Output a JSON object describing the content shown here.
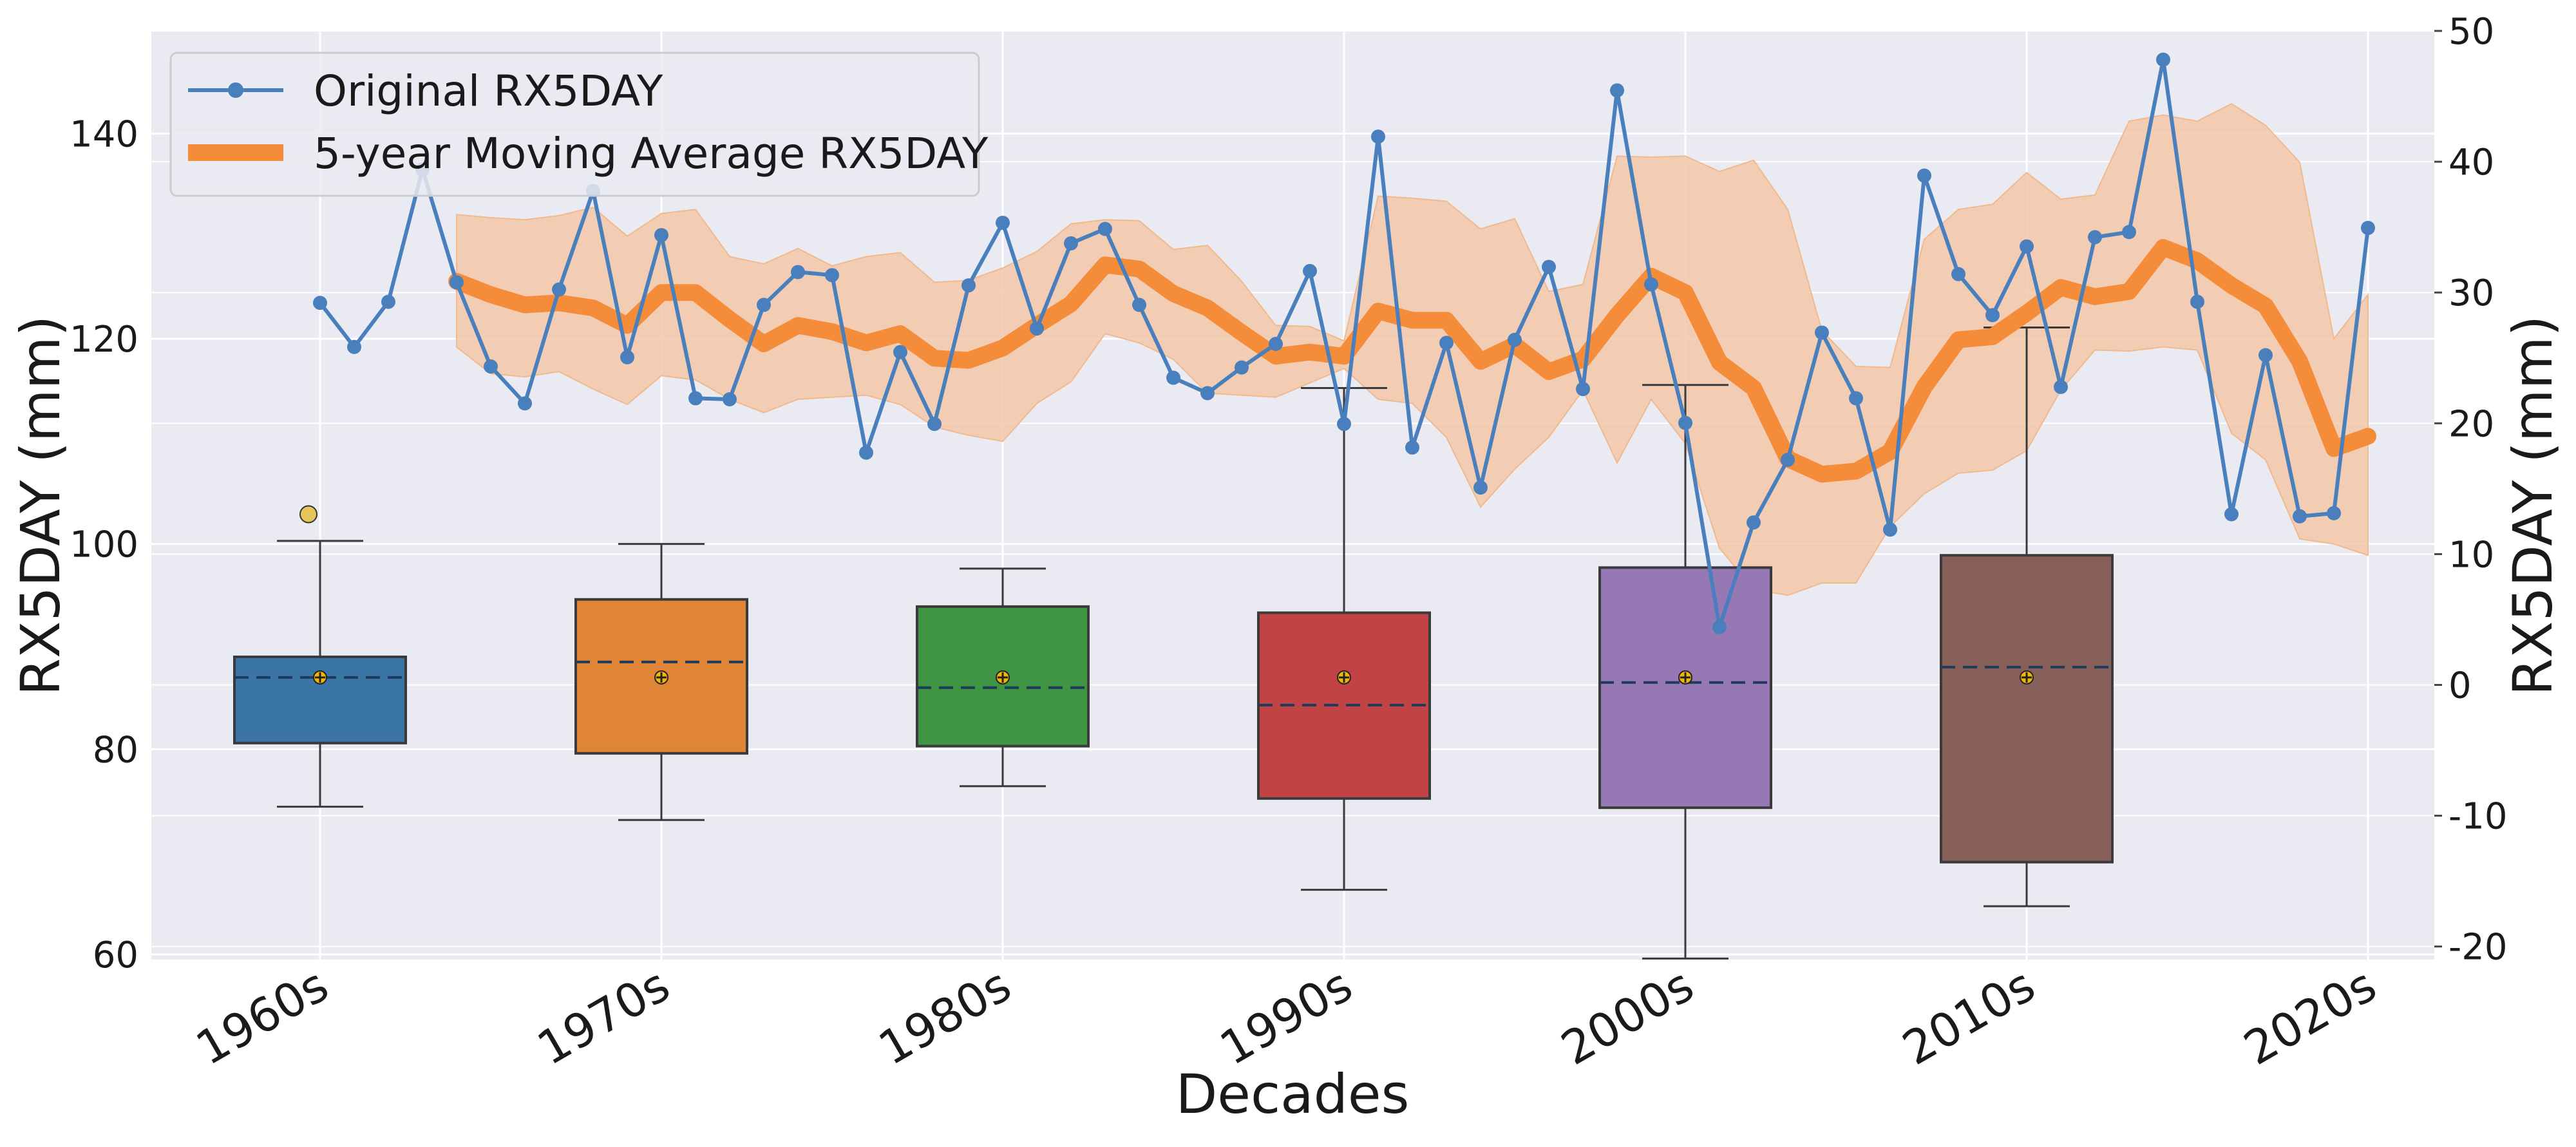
{
  "chart_data": {
    "type": "box_line_combo",
    "xlabel": "Decades",
    "ylabel_left": "RX5DAY (mm)",
    "ylabel_right": "RX5DAY (mm)",
    "ylim_left": [
      59.5,
      150
    ],
    "ylim_right": [
      -21,
      50
    ],
    "yticks_left": [
      60,
      80,
      100,
      120,
      140
    ],
    "yticks_right": [
      -20,
      -10,
      0,
      10,
      20,
      30,
      40,
      50
    ],
    "ytick_labels_right": [
      "-20",
      "-10",
      "0",
      "10",
      "20",
      "30",
      "40",
      "50"
    ],
    "grid": true,
    "legend_position": "top-left",
    "categories": [
      "1960s",
      "1970s",
      "1980s",
      "1990s",
      "2000s",
      "2010s",
      "2020s"
    ],
    "boxes": [
      {
        "category": "1960s",
        "whisker_low": 74.4,
        "q1": 80.6,
        "median": 87.0,
        "q3": 89.0,
        "whisker_high": 100.3,
        "mean": 87.0,
        "outliers": [
          102.9
        ],
        "color": "#3b75a6"
      },
      {
        "category": "1970s",
        "whisker_low": 73.1,
        "q1": 79.6,
        "median": 88.5,
        "q3": 94.6,
        "whisker_high": 100.0,
        "mean": 87.0,
        "outliers": [],
        "color": "#e08535"
      },
      {
        "category": "1980s",
        "whisker_low": 76.4,
        "q1": 80.3,
        "median": 86.0,
        "q3": 93.9,
        "whisker_high": 97.6,
        "mean": 87.0,
        "outliers": [],
        "color": "#3e9442"
      },
      {
        "category": "1990s",
        "whisker_low": 66.3,
        "q1": 75.2,
        "median": 84.3,
        "q3": 93.3,
        "whisker_high": 115.2,
        "mean": 87.0,
        "outliers": [],
        "color": "#c24345"
      },
      {
        "category": "2000s",
        "whisker_low": 59.6,
        "q1": 74.3,
        "median": 86.5,
        "q3": 97.7,
        "whisker_high": 115.5,
        "mean": 87.0,
        "outliers": [],
        "color": "#9678b4"
      },
      {
        "category": "2010s",
        "whisker_low": 64.7,
        "q1": 69.0,
        "median": 88.0,
        "q3": 98.9,
        "whisker_high": 121.1,
        "mean": 87.0,
        "outliers": [],
        "color": "#875f59"
      }
    ],
    "series": [
      {
        "name": "Original RX5DAY",
        "x": [
          1960,
          1961,
          1962,
          1963,
          1964,
          1965,
          1966,
          1967,
          1968,
          1969,
          1970,
          1971,
          1972,
          1973,
          1974,
          1975,
          1976,
          1977,
          1978,
          1979,
          1980,
          1981,
          1982,
          1983,
          1984,
          1985,
          1986,
          1987,
          1988,
          1989,
          1990,
          1991,
          1992,
          1993,
          1994,
          1995,
          1996,
          1997,
          1998,
          1999,
          2000,
          2001,
          2002,
          2003,
          2004,
          2005,
          2006,
          2007,
          2008,
          2009,
          2010,
          2011,
          2012,
          2013,
          2014,
          2015,
          2016,
          2017,
          2018,
          2019,
          2020
        ],
        "values": [
          123.5,
          119.2,
          123.6,
          136.5,
          125.5,
          117.3,
          113.7,
          124.8,
          134.4,
          118.2,
          130.1,
          114.2,
          114.1,
          123.3,
          126.5,
          126.2,
          108.9,
          118.7,
          111.7,
          125.2,
          131.3,
          121.0,
          129.3,
          130.7,
          123.3,
          116.2,
          114.7,
          117.2,
          119.5,
          126.6,
          111.7,
          139.7,
          109.4,
          119.6,
          105.5,
          119.9,
          127.0,
          115.1,
          144.2,
          125.3,
          111.8,
          91.9,
          102.1,
          108.2,
          120.6,
          114.2,
          101.4,
          135.9,
          126.3,
          122.3,
          129.0,
          115.3,
          129.9,
          130.4,
          147.2,
          123.6,
          102.9,
          118.4,
          102.7,
          103.0,
          130.8
        ],
        "color": "#4a7fbd"
      },
      {
        "name": "5-year Moving Average RX5DAY",
        "x": [
          1964,
          1965,
          1966,
          1967,
          1968,
          1969,
          1970,
          1971,
          1972,
          1973,
          1974,
          1975,
          1976,
          1977,
          1978,
          1979,
          1980,
          1981,
          1982,
          1983,
          1984,
          1985,
          1986,
          1987,
          1988,
          1989,
          1990,
          1991,
          1992,
          1993,
          1994,
          1995,
          1996,
          1997,
          1998,
          1999,
          2000,
          2001,
          2002,
          2003,
          2004,
          2005,
          2006,
          2007,
          2008,
          2009,
          2010,
          2011,
          2012,
          2013,
          2014,
          2015,
          2016,
          2017,
          2018,
          2019,
          2020
        ],
        "values": [
          125.6,
          124.3,
          123.3,
          123.5,
          123.0,
          121.3,
          124.5,
          124.5,
          121.9,
          119.5,
          121.3,
          120.7,
          119.6,
          120.5,
          118.1,
          117.9,
          119.1,
          121.3,
          123.4,
          127.2,
          126.8,
          124.4,
          123.0,
          120.6,
          118.3,
          118.7,
          118.3,
          122.7,
          121.8,
          121.8,
          117.8,
          119.4,
          116.8,
          118.0,
          122.3,
          126.1,
          124.5,
          117.7,
          115.2,
          108.3,
          106.8,
          107.1,
          109.0,
          115.3,
          119.9,
          120.2,
          122.5,
          125.0,
          124.1,
          124.6,
          128.9,
          127.6,
          125.2,
          123.2,
          117.8,
          109.3,
          110.5
        ],
        "color": "#f58c3a"
      }
    ],
    "band": {
      "x": [
        1964,
        1965,
        1966,
        1967,
        1968,
        1969,
        1970,
        1971,
        1972,
        1973,
        1974,
        1975,
        1976,
        1977,
        1978,
        1979,
        1980,
        1981,
        1982,
        1983,
        1984,
        1985,
        1986,
        1987,
        1988,
        1989,
        1990,
        1991,
        1992,
        1993,
        1994,
        1995,
        1996,
        1997,
        1998,
        1999,
        2000,
        2001,
        2002,
        2003,
        2004,
        2005,
        2006,
        2007,
        2008,
        2009,
        2010,
        2011,
        2012,
        2013,
        2014,
        2015,
        2016,
        2017,
        2018,
        2019,
        2020
      ],
      "upper": [
        132.1,
        131.8,
        131.6,
        132.0,
        132.8,
        130.0,
        132.2,
        132.6,
        128.0,
        127.3,
        128.8,
        127.1,
        128.0,
        128.4,
        125.5,
        125.7,
        126.9,
        128.5,
        131.2,
        131.6,
        131.5,
        128.7,
        129.1,
        125.6,
        121.3,
        121.2,
        119.8,
        133.9,
        133.7,
        133.4,
        130.7,
        131.7,
        124.6,
        125.3,
        137.8,
        137.7,
        137.8,
        136.3,
        137.4,
        132.6,
        120.8,
        117.3,
        117.2,
        129.7,
        132.6,
        133.1,
        136.2,
        133.6,
        134.0,
        141.2,
        141.8,
        141.2,
        142.9,
        140.8,
        137.2,
        120.0,
        124.3
      ],
      "lower": [
        119.2,
        116.6,
        116.3,
        116.8,
        115.1,
        113.6,
        116.4,
        116.0,
        114.1,
        112.8,
        114.1,
        114.3,
        114.5,
        113.6,
        111.4,
        110.6,
        110.0,
        113.7,
        115.8,
        120.5,
        119.6,
        118.0,
        114.7,
        114.5,
        114.3,
        115.7,
        117.1,
        114.1,
        113.7,
        110.4,
        103.6,
        107.3,
        110.4,
        115.0,
        107.9,
        114.1,
        109.8,
        99.6,
        95.6,
        95.0,
        96.2,
        96.2,
        101.7,
        104.9,
        106.9,
        107.2,
        109.1,
        115.0,
        118.9,
        118.8,
        119.2,
        118.9,
        110.8,
        108.2,
        100.5,
        100.0,
        98.9
      ],
      "color": "#f3c8a8"
    }
  }
}
